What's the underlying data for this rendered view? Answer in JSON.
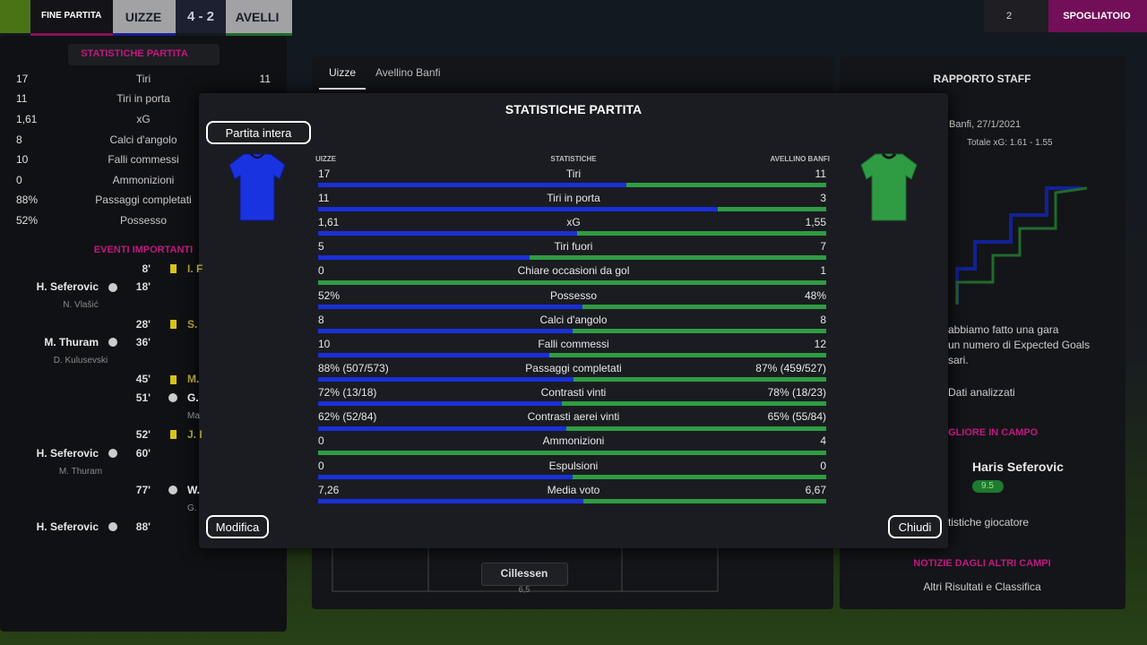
{
  "top_bar": {
    "status": "FINE PARTITA",
    "home": "UIZZE",
    "score": "4 - 2",
    "away": "AVELLI",
    "user_count": "2",
    "button": "SPOGLIATOIO"
  },
  "left_panel": {
    "stats_button": "STATISTICHE PARTITA",
    "stats": [
      {
        "home": "17",
        "label": "Tiri",
        "away": "11"
      },
      {
        "home": "11",
        "label": "Tiri in porta"
      },
      {
        "home": "1,61",
        "label": "xG"
      },
      {
        "home": "8",
        "label": "Calci d'angolo"
      },
      {
        "home": "10",
        "label": "Falli commessi"
      },
      {
        "home": "0",
        "label": "Ammonizioni"
      },
      {
        "home": "88%",
        "label": "Passaggi completati"
      },
      {
        "home": "52%",
        "label": "Possesso"
      }
    ],
    "events_title": "EVENTI IMPORTANTI",
    "events": [
      {
        "minute": "8'",
        "icon": "card",
        "away_player": "I. F"
      },
      {
        "player": "H. Seferovic",
        "minute": "18'",
        "icon": "goal",
        "sub": "N. Vlašić"
      },
      {
        "minute": "28'",
        "icon": "card",
        "away_player": "S."
      },
      {
        "player": "M. Thuram",
        "minute": "36'",
        "icon": "goal",
        "sub": "D. Kulusevski"
      },
      {
        "minute": "45'",
        "icon": "card",
        "away_player": "M."
      },
      {
        "minute": "51'",
        "icon": "goal",
        "away_player": "G.",
        "away_sub": "Ma"
      },
      {
        "minute": "52'",
        "icon": "card",
        "away_player": "J. I"
      },
      {
        "player": "H. Seferovic",
        "minute": "60'",
        "icon": "goal",
        "sub": "M. Thuram"
      },
      {
        "minute": "77'",
        "icon": "goal",
        "away_player": "W.",
        "away_sub": "G."
      },
      {
        "player": "H. Seferovic",
        "minute": "88'",
        "icon": "goal"
      }
    ]
  },
  "middle_panel": {
    "tabs": [
      "Uizze",
      "Avellino Banfi"
    ],
    "player": "Cillessen",
    "rating": "6,5"
  },
  "staff_panel": {
    "title": "RAPPORTO STAFF",
    "match": "Banfi, 27/1/2021",
    "xg_total": "Totale xG: 1.61 - 1.55",
    "report": [
      "abbiamo fatto una gara",
      "un numero di Expected Goals",
      "sari."
    ],
    "analysis_button": "Dati analizzati",
    "best_title": "GLIORE IN CAMPO",
    "best_player": "Haris Seferovic",
    "best_rating": "9.5",
    "player_stats_button": "tistiche giocatore",
    "news_title": "NOTIZIE DAGLI ALTRI CAMPI",
    "news_button": "Altri Risultati e Classifica"
  },
  "modal": {
    "title": "STATISTICHE PARTITA",
    "period": "Partita intera",
    "headers": {
      "home": "UIZZE",
      "stat": "STATISTICHE",
      "away": "AVELLINO BANFI"
    },
    "rows": [
      {
        "home": "17",
        "label": "Tiri",
        "away": "11"
      },
      {
        "home": "11",
        "label": "Tiri in porta",
        "away": "3"
      },
      {
        "home": "1,61",
        "label": "xG",
        "away": "1,55"
      },
      {
        "home": "5",
        "label": "Tiri fuori",
        "away": "7"
      },
      {
        "home": "0",
        "label": "Chiare occasioni da gol",
        "away": "1"
      },
      {
        "home": "52%",
        "label": "Possesso",
        "away": "48%"
      },
      {
        "home": "8",
        "label": "Calci d'angolo",
        "away": "8"
      },
      {
        "home": "10",
        "label": "Falli commessi",
        "away": "12"
      },
      {
        "home": "88% (507/573)",
        "label": "Passaggi completati",
        "away": "87% (459/527)"
      },
      {
        "home": "72% (13/18)",
        "label": "Contrasti vinti",
        "away": "78% (18/23)"
      },
      {
        "home": "62% (52/84)",
        "label": "Contrasti aerei vinti",
        "away": "65% (55/84)"
      },
      {
        "home": "0",
        "label": "Ammonizioni",
        "away": "4"
      },
      {
        "home": "0",
        "label": "Espulsioni",
        "away": "0"
      },
      {
        "home": "7,26",
        "label": "Media voto",
        "away": "6,67"
      }
    ],
    "edit_button": "Modifica",
    "close_button": "Chiudi"
  }
}
